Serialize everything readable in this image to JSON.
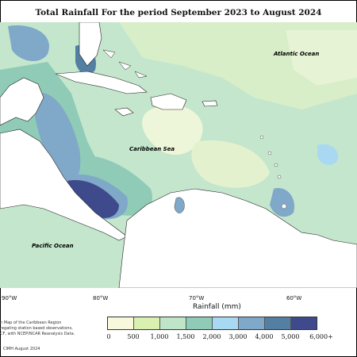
{
  "title": "Total Rainfall For the period September 2023 to August 2024",
  "labels": {
    "atlantic": "Atlantic Ocean",
    "caribbean": "Caribbean Sea",
    "pacific": "Pacific Ocean"
  },
  "longitudes": [
    "90°W",
    "80°W",
    "70°W",
    "60°W"
  ],
  "legend": {
    "title": "Rainfall (mm)",
    "ticks": [
      "0",
      "500",
      "1,000",
      "1,500",
      "2,000",
      "3,000",
      "4,000",
      "5,000",
      "6,000+"
    ],
    "colors": [
      "#f8f8dc",
      "#d9f0b0",
      "#bfe5c8",
      "#8fcbb6",
      "#a9d8f2",
      "#7fa8c9",
      "#537fa3",
      "#3f4a8c"
    ]
  },
  "notes": {
    "line1": "n Map of the Caribbean Region",
    "line2": "regating station based observations,",
    "line3": "CF, with NCEP/NCAR Reanalysis Data.",
    "credit": "CIMH August 2024"
  }
}
